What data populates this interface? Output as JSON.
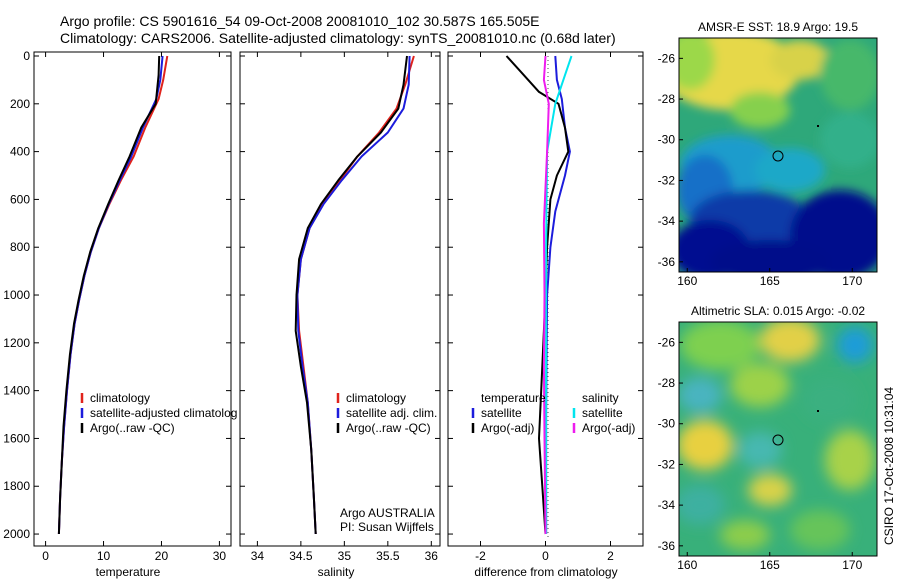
{
  "header": {
    "line1": "Argo profile: CS 5901616_54 09-Oct-2008 20081010_102 30.587S 165.505E",
    "line2": "Climatology: CARS2006. Satellite-adjusted climatology: synTS_20081010.nc (0.68d later)"
  },
  "side_label": "CSIRO 17-Oct-2008 10:31:04",
  "colors": {
    "red": "#e0231c",
    "blue": "#1c1cdc",
    "black": "#000000",
    "cyan": "#00e5ee",
    "magenta": "#ee1cee"
  },
  "chart_data": [
    {
      "type": "line",
      "xlabel": "temperature",
      "xlim": [
        -2,
        32
      ],
      "ylim": [
        0,
        2050
      ],
      "xticks": [
        "0",
        "10",
        "20",
        "30"
      ],
      "yticks": [
        "0",
        "200",
        "400",
        "600",
        "800",
        "1000",
        "1200",
        "1400",
        "1600",
        "1800",
        "2000"
      ],
      "legend": [
        "climatology",
        "satellite-adjusted climatolog",
        "Argo(..raw -QC)"
      ],
      "series": [
        {
          "name": "climatology",
          "color": "red",
          "points": [
            [
              21,
              0
            ],
            [
              20.3,
              100
            ],
            [
              19.5,
              180
            ],
            [
              17.2,
              300
            ],
            [
              15.2,
              420
            ],
            [
              13,
              520
            ],
            [
              11,
              620
            ],
            [
              9.2,
              720
            ],
            [
              7.8,
              820
            ],
            [
              6.7,
              920
            ],
            [
              5.8,
              1020
            ],
            [
              5,
              1120
            ],
            [
              4.3,
              1250
            ],
            [
              3.7,
              1400
            ],
            [
              3.2,
              1550
            ],
            [
              2.8,
              1700
            ],
            [
              2.5,
              1850
            ],
            [
              2.3,
              2000
            ]
          ]
        },
        {
          "name": "satellite-adjusted climatolog",
          "color": "blue",
          "points": [
            [
              20.2,
              0
            ],
            [
              19.8,
              100
            ],
            [
              19.1,
              180
            ],
            [
              16.8,
              300
            ],
            [
              14.8,
              420
            ],
            [
              12.8,
              520
            ],
            [
              10.9,
              620
            ],
            [
              9.2,
              720
            ],
            [
              7.8,
              820
            ],
            [
              6.7,
              920
            ],
            [
              5.8,
              1020
            ],
            [
              5,
              1120
            ],
            [
              4.3,
              1250
            ],
            [
              3.7,
              1400
            ],
            [
              3.2,
              1550
            ],
            [
              2.8,
              1700
            ],
            [
              2.5,
              1850
            ],
            [
              2.3,
              2000
            ]
          ]
        },
        {
          "name": "Argo(..raw -QC)",
          "color": "black",
          "points": [
            [
              19.6,
              0
            ],
            [
              19.5,
              80
            ],
            [
              19,
              200
            ],
            [
              16.5,
              300
            ],
            [
              14.5,
              420
            ],
            [
              12.6,
              520
            ],
            [
              10.8,
              620
            ],
            [
              9.1,
              720
            ],
            [
              7.7,
              820
            ],
            [
              6.6,
              920
            ],
            [
              5.7,
              1020
            ],
            [
              4.9,
              1120
            ],
            [
              4.2,
              1250
            ],
            [
              3.6,
              1400
            ],
            [
              3.1,
              1550
            ],
            [
              2.8,
              1700
            ],
            [
              2.5,
              1850
            ],
            [
              2.3,
              2000
            ]
          ]
        }
      ]
    },
    {
      "type": "line",
      "xlabel": "salinity",
      "xlim": [
        33.8,
        36.1
      ],
      "ylim": [
        0,
        2050
      ],
      "xticks": [
        "34",
        "34.5",
        "35",
        "35.5",
        "36"
      ],
      "legend": [
        "climatology",
        "satellite adj. clim.",
        "Argo(..raw -QC)"
      ],
      "annotation": [
        "Argo AUSTRALIA",
        "PI: Susan Wijffels"
      ],
      "series": [
        {
          "name": "climatology",
          "color": "red",
          "points": [
            [
              35.8,
              0
            ],
            [
              35.7,
              120
            ],
            [
              35.6,
              220
            ],
            [
              35.4,
              320
            ],
            [
              35.15,
              420
            ],
            [
              34.95,
              520
            ],
            [
              34.75,
              620
            ],
            [
              34.6,
              720
            ],
            [
              34.5,
              850
            ],
            [
              34.46,
              1000
            ],
            [
              34.48,
              1150
            ],
            [
              34.53,
              1300
            ],
            [
              34.58,
              1450
            ],
            [
              34.62,
              1650
            ],
            [
              34.65,
              1850
            ],
            [
              34.67,
              2000
            ]
          ]
        },
        {
          "name": "satellite adj. clim.",
          "color": "blue",
          "points": [
            [
              35.75,
              0
            ],
            [
              35.74,
              120
            ],
            [
              35.68,
              220
            ],
            [
              35.5,
              320
            ],
            [
              35.2,
              420
            ],
            [
              34.97,
              520
            ],
            [
              34.76,
              620
            ],
            [
              34.6,
              720
            ],
            [
              34.5,
              850
            ],
            [
              34.46,
              1000
            ],
            [
              34.47,
              1150
            ],
            [
              34.52,
              1300
            ],
            [
              34.58,
              1450
            ],
            [
              34.62,
              1650
            ],
            [
              34.65,
              1850
            ],
            [
              34.67,
              2000
            ]
          ]
        },
        {
          "name": "Argo(..raw -QC)",
          "color": "black",
          "points": [
            [
              35.72,
              0
            ],
            [
              35.68,
              120
            ],
            [
              35.62,
              220
            ],
            [
              35.42,
              320
            ],
            [
              35.15,
              420
            ],
            [
              34.93,
              520
            ],
            [
              34.73,
              620
            ],
            [
              34.58,
              720
            ],
            [
              34.48,
              850
            ],
            [
              34.45,
              1000
            ],
            [
              34.44,
              1150
            ],
            [
              34.5,
              1300
            ],
            [
              34.57,
              1450
            ],
            [
              34.62,
              1650
            ],
            [
              34.65,
              1850
            ],
            [
              34.67,
              2000
            ]
          ]
        }
      ]
    },
    {
      "type": "line",
      "xlabel": "difference from climatology",
      "xlim": [
        -3,
        3
      ],
      "ylim": [
        0,
        2050
      ],
      "xticks": [
        "-2",
        "0",
        "2"
      ],
      "legend_left": [
        "temperature",
        "satellite",
        "Argo(-adj)"
      ],
      "legend_right": [
        "salinity",
        "satellite",
        "Argo(-adj)"
      ],
      "series": [
        {
          "name": "temperature satellite",
          "color": "blue",
          "points": [
            [
              0.3,
              0
            ],
            [
              0.35,
              100
            ],
            [
              0.5,
              180
            ],
            [
              0.6,
              300
            ],
            [
              0.75,
              400
            ],
            [
              0.6,
              500
            ],
            [
              0.3,
              650
            ],
            [
              0.15,
              800
            ],
            [
              0.05,
              1000
            ],
            [
              0.02,
              1500
            ],
            [
              0.02,
              2000
            ]
          ]
        },
        {
          "name": "temperature Argo(-adj)",
          "color": "black",
          "points": [
            [
              -1.2,
              0
            ],
            [
              -0.8,
              60
            ],
            [
              -0.2,
              150
            ],
            [
              0.4,
              200
            ],
            [
              0.6,
              300
            ],
            [
              0.7,
              400
            ],
            [
              0.35,
              500
            ],
            [
              0.15,
              600
            ],
            [
              0.05,
              800
            ],
            [
              0,
              1000
            ],
            [
              -0.1,
              1300
            ],
            [
              -0.2,
              1600
            ],
            [
              -0.1,
              1800
            ],
            [
              0,
              2000
            ]
          ]
        },
        {
          "name": "salinity satellite",
          "color": "cyan",
          "points": [
            [
              0.8,
              0
            ],
            [
              0.6,
              80
            ],
            [
              0.3,
              200
            ],
            [
              0.05,
              400
            ],
            [
              0.02,
              800
            ],
            [
              0.02,
              2000
            ]
          ]
        },
        {
          "name": "salinity Argo(-adj)",
          "color": "magenta",
          "points": [
            [
              0,
              0
            ],
            [
              -0.05,
              100
            ],
            [
              0.1,
              200
            ],
            [
              0.05,
              400
            ],
            [
              -0.05,
              700
            ],
            [
              -0.03,
              1000
            ],
            [
              -0.05,
              1300
            ],
            [
              -0.03,
              1600
            ],
            [
              0,
              2000
            ]
          ]
        }
      ]
    },
    {
      "type": "heatmap",
      "title": "AMSR-E SST: 18.9 Argo: 19.5",
      "xticks": [
        "160",
        "165",
        "170"
      ],
      "yticks": [
        "-26",
        "-28",
        "-30",
        "-32",
        "-34",
        "-36"
      ]
    },
    {
      "type": "heatmap",
      "title": "Altimetric SLA: 0.015 Argo: -0.02",
      "xticks": [
        "160",
        "165",
        "170"
      ],
      "yticks": [
        "-26",
        "-28",
        "-30",
        "-32",
        "-34",
        "-36"
      ]
    }
  ]
}
